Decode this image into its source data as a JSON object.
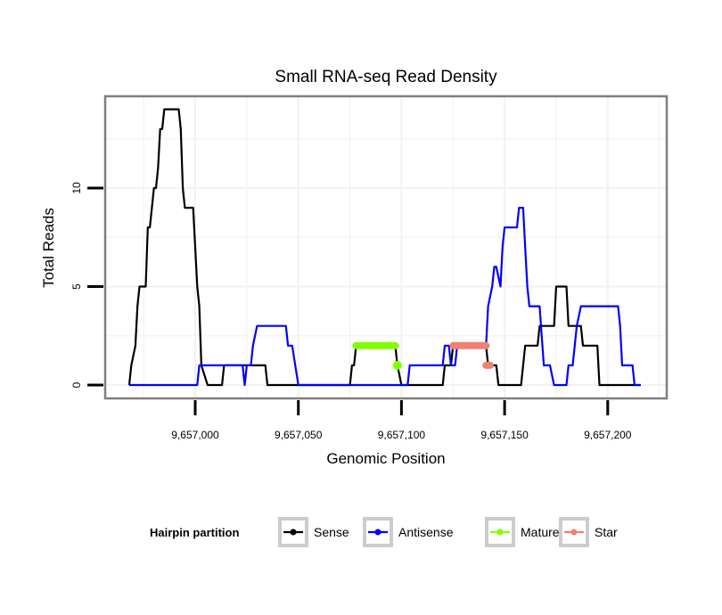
{
  "chart_data": {
    "type": "line",
    "title": "Small RNA-seq Read Density",
    "xlabel": "Genomic Position",
    "ylabel": "Total Reads",
    "xlim": [
      9656946,
      9657225
    ],
    "ylim": [
      -0.7,
      14.6
    ],
    "x_ticks": [
      9657000,
      9657050,
      9657100,
      9657150,
      9657200
    ],
    "x_tick_labels": [
      "9,657,000",
      "9,657,050",
      "9,657,100",
      "9,657,150",
      "9,657,200"
    ],
    "y_ticks": [
      0,
      5,
      10
    ],
    "y_tick_labels": [
      "0",
      "5",
      "10"
    ],
    "grid": true,
    "legend": {
      "title": "Hairpin partition",
      "position": "bottom",
      "entries": [
        {
          "label": "Sense",
          "color": "#000000"
        },
        {
          "label": "Antisense",
          "color": "#0000ff"
        },
        {
          "label": "Mature",
          "color": "#7fff00"
        },
        {
          "label": "Star",
          "color": "#f08070"
        }
      ]
    },
    "series": [
      {
        "name": "Sense",
        "color": "#000000",
        "points": [
          [
            9656968,
            0
          ],
          [
            9656969,
            1
          ],
          [
            9656971,
            2
          ],
          [
            9656972,
            4
          ],
          [
            9656973,
            5
          ],
          [
            9656976,
            5
          ],
          [
            9656977,
            8
          ],
          [
            9656978,
            8
          ],
          [
            9656979,
            9
          ],
          [
            9656980,
            10
          ],
          [
            9656981,
            10
          ],
          [
            9656982,
            11
          ],
          [
            9656983,
            13
          ],
          [
            9656984,
            13
          ],
          [
            9656985,
            14
          ],
          [
            9656992,
            14
          ],
          [
            9656993,
            13
          ],
          [
            9656994,
            10
          ],
          [
            9656995,
            9
          ],
          [
            9656999,
            9
          ],
          [
            9657001,
            5
          ],
          [
            9657002,
            4
          ],
          [
            9657003,
            1
          ],
          [
            9657006,
            0
          ],
          [
            9657013,
            0
          ],
          [
            9657014,
            1
          ],
          [
            9657034,
            1
          ],
          [
            9657035,
            0
          ],
          [
            9657075,
            0
          ],
          [
            9657076,
            1
          ],
          [
            9657077,
            1
          ],
          [
            9657078,
            2
          ],
          [
            9657097,
            2
          ],
          [
            9657098,
            1
          ],
          [
            9657100,
            0
          ],
          [
            9657120,
            0
          ],
          [
            9657121,
            1
          ],
          [
            9657124,
            1
          ],
          [
            9657125,
            2
          ],
          [
            9657141,
            2
          ],
          [
            9657142,
            1
          ],
          [
            9657146,
            1
          ],
          [
            9657147,
            0
          ],
          [
            9657158,
            0
          ],
          [
            9657160,
            2
          ],
          [
            9657166,
            2
          ],
          [
            9657167,
            3
          ],
          [
            9657174,
            3
          ],
          [
            9657175,
            5
          ],
          [
            9657180,
            5
          ],
          [
            9657181,
            3
          ],
          [
            9657187,
            3
          ],
          [
            9657188,
            2
          ],
          [
            9657195,
            2
          ],
          [
            9657196,
            0
          ],
          [
            9657216,
            0
          ]
        ]
      },
      {
        "name": "Antisense",
        "color": "#0000ff",
        "points": [
          [
            9656968,
            0
          ],
          [
            9657001,
            0
          ],
          [
            9657002,
            1
          ],
          [
            9657013,
            1
          ],
          [
            9657023,
            1
          ],
          [
            9657024,
            0
          ],
          [
            9657025,
            1
          ],
          [
            9657027,
            1
          ],
          [
            9657028,
            2
          ],
          [
            9657030,
            3
          ],
          [
            9657044,
            3
          ],
          [
            9657045,
            2
          ],
          [
            9657047,
            2
          ],
          [
            9657050,
            0
          ],
          [
            9657103,
            0
          ],
          [
            9657104,
            1
          ],
          [
            9657120,
            1
          ],
          [
            9657121,
            2
          ],
          [
            9657123,
            2
          ],
          [
            9657124,
            1
          ],
          [
            9657126,
            1
          ],
          [
            9657127,
            2
          ],
          [
            9657141,
            2
          ],
          [
            9657142,
            4
          ],
          [
            9657144,
            5
          ],
          [
            9657145,
            6
          ],
          [
            9657146,
            6
          ],
          [
            9657148,
            5
          ],
          [
            9657149,
            7
          ],
          [
            9657150,
            8
          ],
          [
            9657156,
            8
          ],
          [
            9657157,
            9
          ],
          [
            9657159,
            9
          ],
          [
            9657160,
            7
          ],
          [
            9657161,
            5
          ],
          [
            9657162,
            4
          ],
          [
            9657167,
            4
          ],
          [
            9657169,
            1
          ],
          [
            9657172,
            1
          ],
          [
            9657174,
            0
          ],
          [
            9657180,
            0
          ],
          [
            9657181,
            1
          ],
          [
            9657183,
            1
          ],
          [
            9657184,
            2
          ],
          [
            9657185,
            3
          ],
          [
            9657187,
            4
          ],
          [
            9657205,
            4
          ],
          [
            9657206,
            3
          ],
          [
            9657207,
            1
          ],
          [
            9657212,
            1
          ],
          [
            9657213,
            0
          ],
          [
            9657216,
            0
          ]
        ]
      },
      {
        "name": "Mature",
        "color": "#7fff00",
        "points": [
          [
            9657078,
            2
          ],
          [
            9657097,
            2
          ]
        ],
        "extra_points": [
          [
            9657098,
            1
          ]
        ]
      },
      {
        "name": "Star",
        "color": "#f08070",
        "points": [
          [
            9657125,
            2
          ],
          [
            9657141,
            2
          ]
        ],
        "extra_points": [
          [
            9657141,
            1
          ],
          [
            9657143,
            1
          ]
        ]
      }
    ]
  }
}
